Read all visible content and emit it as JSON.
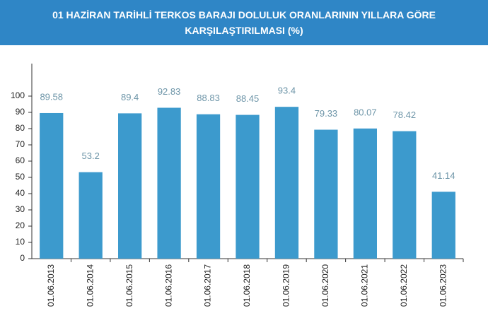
{
  "chart_data": {
    "type": "bar",
    "title": "01 HAZİRAN TARİHLİ TERKOS BARAJI DOLULUK ORANLARININ YILLARA GÖRE KARŞILAŞTIRILMASI (%)",
    "categories": [
      "01.06.2013",
      "01.06.2014",
      "01.06.2015",
      "01.06.2016",
      "01.06.2017",
      "01.06.2018",
      "01.06.2019",
      "01.06.2020",
      "01.06.2021",
      "01.06.2022",
      "01.06.2023"
    ],
    "values": [
      89.58,
      53.2,
      89.4,
      92.83,
      88.83,
      88.45,
      93.4,
      79.33,
      80.07,
      78.42,
      41.14
    ],
    "color": "#3c9acd",
    "ylim": [
      0,
      120
    ],
    "yticks": [
      0,
      10,
      20,
      30,
      40,
      50,
      60,
      70,
      80,
      90,
      100
    ],
    "grid": false
  }
}
